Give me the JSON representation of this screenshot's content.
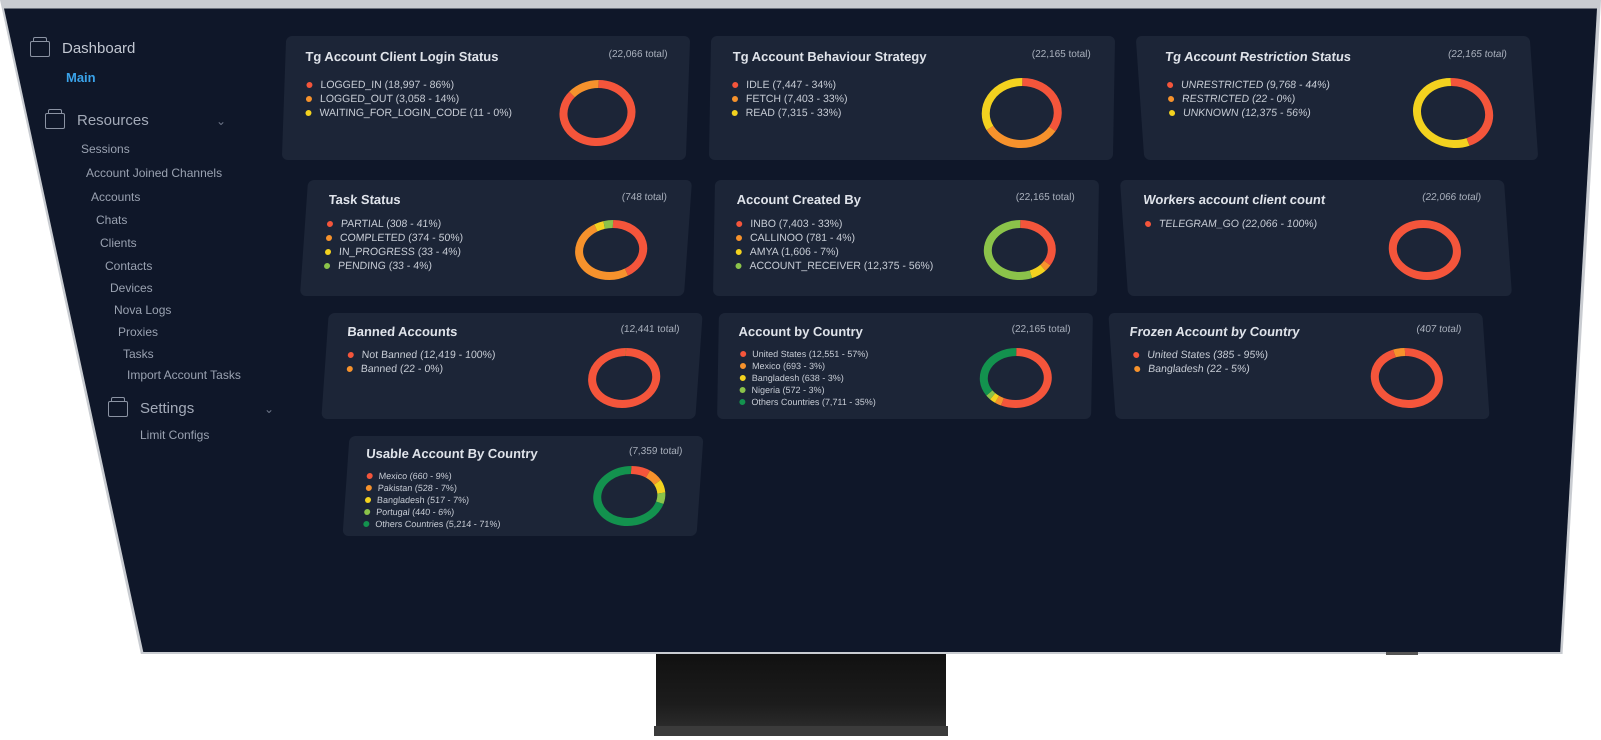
{
  "colors": {
    "red": "#f4553b",
    "orange": "#f6922c",
    "yellow": "#f3d21f",
    "lightgreen": "#8bc34a",
    "green": "#13924e",
    "accent": "#3aa3ea"
  },
  "sidebar": {
    "dashboard": {
      "label": "Dashboard",
      "icon": "box-icon"
    },
    "main": "Main",
    "resources": {
      "label": "Resources",
      "icon": "box-icon",
      "items": [
        "Sessions",
        "Account Joined Channels",
        "Accounts",
        "Chats",
        "Clients",
        "Contacts",
        "Devices",
        "Nova Logs",
        "Proxies",
        "Tasks",
        "Import Account Tasks"
      ]
    },
    "settings": {
      "label": "Settings",
      "icon": "box-icon",
      "items": [
        "Limit Configs"
      ]
    }
  },
  "cards": [
    {
      "title": "Tg Account Client Login Status",
      "total": "(22,066 total)",
      "legend": [
        {
          "label": "LOGGED_IN (18,997 - 86%)",
          "color": "red"
        },
        {
          "label": "LOGGED_OUT (3,058 - 14%)",
          "color": "orange"
        },
        {
          "label": "WAITING_FOR_LOGIN_CODE (11 - 0%)",
          "color": "yellow"
        }
      ],
      "chart_data": {
        "type": "pie",
        "donut": true,
        "labels": [
          "LOGGED_IN",
          "LOGGED_OUT",
          "WAITING_FOR_LOGIN_CODE"
        ],
        "values": [
          18997,
          3058,
          11
        ]
      }
    },
    {
      "title": "Tg Account Behaviour Strategy",
      "total": "(22,165 total)",
      "legend": [
        {
          "label": "IDLE (7,447 - 34%)",
          "color": "red"
        },
        {
          "label": "FETCH (7,403 - 33%)",
          "color": "orange"
        },
        {
          "label": "READ (7,315 - 33%)",
          "color": "yellow"
        }
      ],
      "chart_data": {
        "type": "pie",
        "donut": true,
        "labels": [
          "IDLE",
          "FETCH",
          "READ"
        ],
        "values": [
          7447,
          7403,
          7315
        ]
      }
    },
    {
      "title": "Tg Account Restriction Status",
      "total": "(22,165 total)",
      "legend": [
        {
          "label": "UNRESTRICTED (9,768 - 44%)",
          "color": "red"
        },
        {
          "label": "RESTRICTED (22 - 0%)",
          "color": "orange"
        },
        {
          "label": "UNKNOWN (12,375 - 56%)",
          "color": "yellow"
        }
      ],
      "chart_data": {
        "type": "pie",
        "donut": true,
        "labels": [
          "UNRESTRICTED",
          "RESTRICTED",
          "UNKNOWN"
        ],
        "values": [
          9768,
          22,
          12375
        ]
      }
    },
    {
      "title": "Task Status",
      "total": "(748 total)",
      "legend": [
        {
          "label": "PARTIAL (308 - 41%)",
          "color": "red"
        },
        {
          "label": "COMPLETED (374 - 50%)",
          "color": "orange"
        },
        {
          "label": "IN_PROGRESS (33 - 4%)",
          "color": "yellow"
        },
        {
          "label": "PENDING (33 - 4%)",
          "color": "lightgreen"
        }
      ],
      "chart_data": {
        "type": "pie",
        "donut": true,
        "labels": [
          "PARTIAL",
          "COMPLETED",
          "IN_PROGRESS",
          "PENDING"
        ],
        "values": [
          308,
          374,
          33,
          33
        ]
      }
    },
    {
      "title": "Account Created By",
      "total": "(22,165 total)",
      "legend": [
        {
          "label": "INBO (7,403 - 33%)",
          "color": "red"
        },
        {
          "label": "CALLINOO (781 - 4%)",
          "color": "orange"
        },
        {
          "label": "AMYA (1,606 - 7%)",
          "color": "yellow"
        },
        {
          "label": "ACCOUNT_RECEIVER (12,375 - 56%)",
          "color": "lightgreen"
        }
      ],
      "chart_data": {
        "type": "pie",
        "donut": true,
        "labels": [
          "INBO",
          "CALLINOO",
          "AMYA",
          "ACCOUNT_RECEIVER"
        ],
        "values": [
          7403,
          781,
          1606,
          12375
        ]
      }
    },
    {
      "title": "Workers account client count",
      "total": "(22,066 total)",
      "legend": [
        {
          "label": "TELEGRAM_GO (22,066 - 100%)",
          "color": "red"
        }
      ],
      "chart_data": {
        "type": "pie",
        "donut": true,
        "labels": [
          "TELEGRAM_GO"
        ],
        "values": [
          22066
        ]
      }
    },
    {
      "title": "Banned Accounts",
      "total": "(12,441 total)",
      "legend": [
        {
          "label": "Not Banned (12,419 - 100%)",
          "color": "red"
        },
        {
          "label": "Banned (22 - 0%)",
          "color": "orange"
        }
      ],
      "chart_data": {
        "type": "pie",
        "donut": true,
        "labels": [
          "Not Banned",
          "Banned"
        ],
        "values": [
          12419,
          22
        ]
      }
    },
    {
      "title": "Account by Country",
      "total": "(22,165 total)",
      "legend": [
        {
          "label": "United States (12,551 - 57%)",
          "color": "red"
        },
        {
          "label": "Mexico (693 - 3%)",
          "color": "orange"
        },
        {
          "label": "Bangladesh (638 - 3%)",
          "color": "yellow"
        },
        {
          "label": "Nigeria (572 - 3%)",
          "color": "lightgreen"
        },
        {
          "label": "Others Countries (7,711 - 35%)",
          "color": "green"
        }
      ],
      "chart_data": {
        "type": "pie",
        "donut": true,
        "labels": [
          "United States",
          "Mexico",
          "Bangladesh",
          "Nigeria",
          "Others Countries"
        ],
        "values": [
          12551,
          693,
          638,
          572,
          7711
        ]
      }
    },
    {
      "title": "Frozen Account by Country",
      "total": "(407 total)",
      "legend": [
        {
          "label": "United States (385 - 95%)",
          "color": "red"
        },
        {
          "label": "Bangladesh (22 - 5%)",
          "color": "orange"
        }
      ],
      "chart_data": {
        "type": "pie",
        "donut": true,
        "labels": [
          "United States",
          "Bangladesh"
        ],
        "values": [
          385,
          22
        ]
      }
    },
    {
      "title": "Usable Account By Country",
      "total": "(7,359 total)",
      "legend": [
        {
          "label": "Mexico (660 - 9%)",
          "color": "red"
        },
        {
          "label": "Pakistan (528 - 7%)",
          "color": "orange"
        },
        {
          "label": "Bangladesh (517 - 7%)",
          "color": "yellow"
        },
        {
          "label": "Portugal (440 - 6%)",
          "color": "lightgreen"
        },
        {
          "label": "Others Countries (5,214 - 71%)",
          "color": "green"
        }
      ],
      "chart_data": {
        "type": "pie",
        "donut": true,
        "labels": [
          "Mexico",
          "Pakistan",
          "Bangladesh",
          "Portugal",
          "Others Countries"
        ],
        "values": [
          660,
          528,
          517,
          440,
          5214
        ]
      }
    }
  ]
}
